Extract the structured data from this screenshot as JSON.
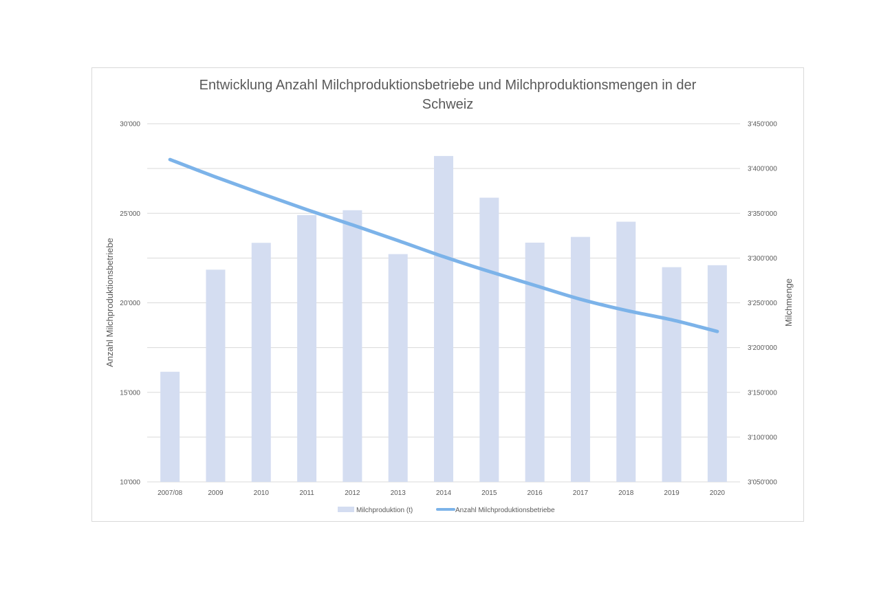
{
  "chart_data": {
    "type": "bar",
    "title_line1": "Entwicklung Anzahl Milchproduktionsbetriebe und Milchproduktionsmengen in der",
    "title_line2": "Schweiz",
    "categories": [
      "2007/08",
      "2009",
      "2010",
      "2011",
      "2012",
      "2013",
      "2014",
      "2015",
      "2016",
      "2017",
      "2018",
      "2019",
      "2020"
    ],
    "ylabel_left": "Anzahl Milchproduktionsbetriebe",
    "ylabel_right": "Milchmenge",
    "ylim_left": [
      10000,
      30000
    ],
    "ylim_right": [
      3050000,
      3450000
    ],
    "yticks_left": [
      "10'000",
      "15'000",
      "20'000",
      "25'000",
      "30'000"
    ],
    "yticks_right": [
      "3'050'000",
      "3'100'000",
      "3'150'000",
      "3'200'000",
      "3'250'000",
      "3'300'000",
      "3'350'000",
      "3'400'000",
      "3'450'000"
    ],
    "grid": true,
    "legend_position": "bottom",
    "series": [
      {
        "name": "Milchproduktion (t)",
        "type": "bar",
        "axis": "left",
        "color": "#d4ddf1",
        "values": [
          16150,
          21850,
          23350,
          24900,
          25170,
          22720,
          28200,
          25870,
          23360,
          23680,
          24530,
          21990,
          22100
        ]
      },
      {
        "name": "Anzahl Milchproduktionsbetriebe",
        "type": "line",
        "axis": "right",
        "color": "#7cb3e9",
        "values": [
          3410000,
          3390500,
          3372000,
          3354000,
          3337000,
          3319500,
          3301500,
          3285000,
          3269500,
          3254000,
          3241500,
          3231000,
          3218000
        ]
      }
    ]
  }
}
